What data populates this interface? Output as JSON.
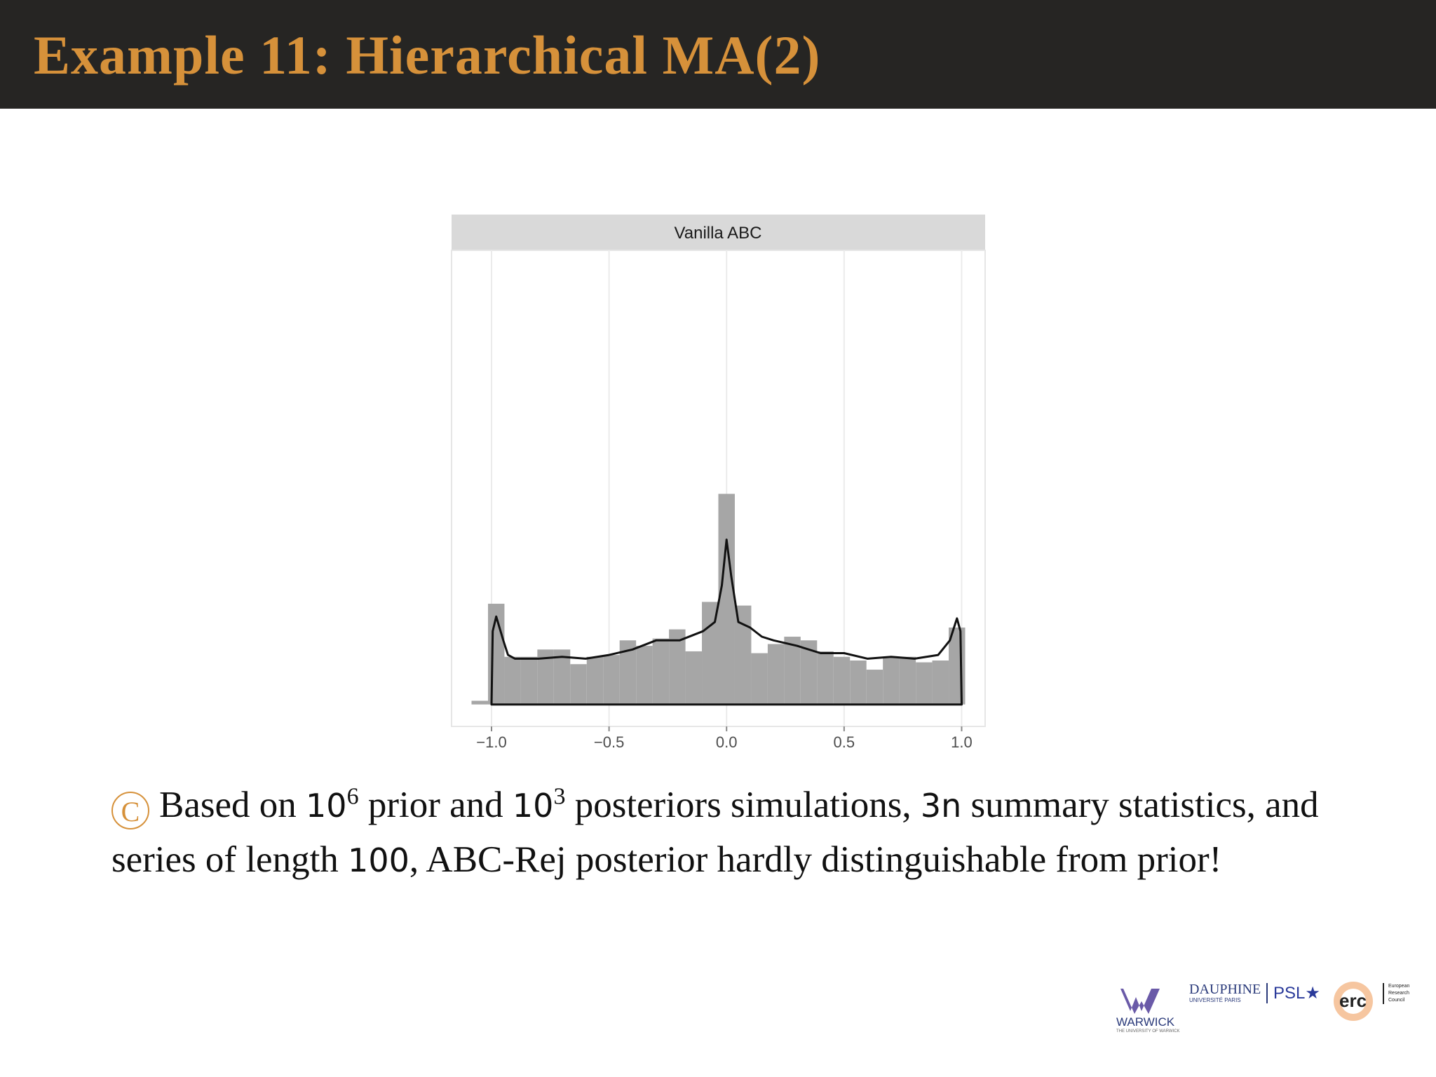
{
  "header": {
    "title": "Example 11: Hierarchical MA(2)"
  },
  "chart_data": {
    "type": "histogram",
    "title": "Vanilla ABC",
    "bins": [
      -1.085,
      -1.015,
      -0.945,
      -0.875,
      -0.805,
      -0.735,
      -0.665,
      -0.595,
      -0.525,
      -0.455,
      -0.385,
      -0.315,
      -0.245,
      -0.175,
      -0.105,
      -0.035,
      0.035,
      0.105,
      0.175,
      0.245,
      0.315,
      0.385,
      0.455,
      0.525,
      0.595,
      0.665,
      0.735,
      0.805,
      0.875,
      0.945,
      1.015
    ],
    "values": [
      2,
      55,
      26,
      26,
      30,
      30,
      22,
      26,
      27,
      35,
      32,
      36,
      41,
      29,
      56,
      115,
      54,
      28,
      33,
      37,
      35,
      29,
      26,
      24,
      19,
      26,
      26,
      23,
      24,
      42
    ],
    "color": "#a6a6a6",
    "density": {
      "color": "#111111",
      "x": [
        -1.0,
        -0.995,
        -0.98,
        -0.95,
        -0.93,
        -0.9,
        -0.8,
        -0.7,
        -0.6,
        -0.5,
        -0.4,
        -0.3,
        -0.2,
        -0.1,
        -0.05,
        -0.02,
        0.0,
        0.02,
        0.05,
        0.1,
        0.15,
        0.2,
        0.3,
        0.4,
        0.5,
        0.6,
        0.7,
        0.8,
        0.9,
        0.95,
        0.98,
        0.995,
        1.0
      ],
      "values": [
        0,
        40,
        48,
        35,
        27,
        25,
        25,
        26,
        25,
        27,
        30,
        35,
        35,
        40,
        45,
        65,
        90,
        70,
        45,
        42,
        37,
        35,
        32,
        28,
        28,
        25,
        26,
        25,
        27,
        35,
        47,
        40,
        0
      ]
    },
    "xlim": [
      -1.17,
      1.1
    ],
    "ylim": [
      -12,
      248
    ],
    "xticks": [
      {
        "value": -1.0,
        "label": "−1.0"
      },
      {
        "value": -0.5,
        "label": "−0.5"
      },
      {
        "value": 0.0,
        "label": "0.0"
      },
      {
        "value": 0.5,
        "label": "0.5"
      },
      {
        "value": 1.0,
        "label": "1.0"
      }
    ],
    "grid": true
  },
  "body": {
    "symbol": "C",
    "parts": [
      "Based on ",
      "10",
      "6",
      " prior and ",
      "10",
      "3",
      " posteriors simulations, ",
      "3n",
      " summary statistics, and series of length ",
      "100",
      ", ABC-Rej posterior hardly distinguishable from prior!"
    ]
  },
  "logos": {
    "warwick": "WARWICK",
    "warwick_sub": "THE UNIVERSITY OF WARWICK",
    "dauphine": "DAUPHINE",
    "dauphine_sub": "UNIVERSITÉ PARIS",
    "psl": "PSL★",
    "erc": "erc",
    "erc_sub": [
      "European",
      "Research",
      "Council"
    ]
  }
}
